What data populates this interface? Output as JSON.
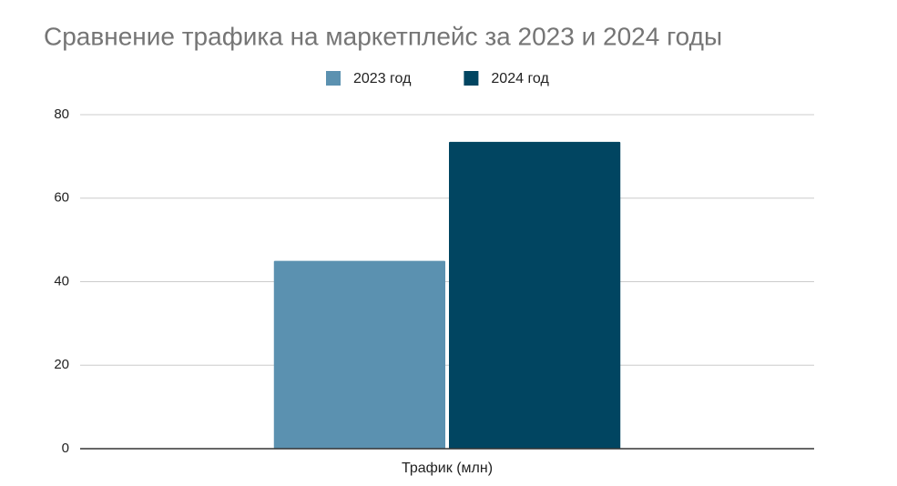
{
  "chart_data": {
    "type": "bar",
    "title": "Сравнение трафика на маркетплейс за 2023 и 2024 годы",
    "categories": [
      "Трафик (млн)"
    ],
    "series": [
      {
        "name": "2023 год",
        "color": "#5b91b0",
        "values": [
          45
        ]
      },
      {
        "name": "2024 год",
        "color": "#014561",
        "values": [
          73.5
        ]
      }
    ],
    "ylim": [
      0,
      80
    ],
    "yticks": [
      0,
      20,
      40,
      60,
      80
    ],
    "grid": true,
    "legend": "top"
  }
}
